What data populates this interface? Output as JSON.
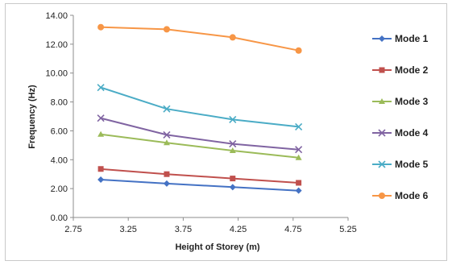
{
  "chart_data": {
    "type": "line",
    "title": "",
    "xlabel": "Height of Storey (m)",
    "ylabel": "Frequency (Hz)",
    "xlim": [
      2.75,
      5.25
    ],
    "ylim": [
      0,
      14
    ],
    "x_ticks": [
      "2.75",
      "3.25",
      "3.75",
      "4.25",
      "4.75",
      "5.25"
    ],
    "y_ticks": [
      "0.00",
      "2.00",
      "4.00",
      "6.00",
      "8.00",
      "10.00",
      "12.00",
      "14.00"
    ],
    "grid": false,
    "legend_position": "right",
    "series": [
      {
        "name": "Mode 1",
        "color": "#4472c4",
        "marker": "diamond",
        "x": [
          3.0,
          3.6,
          4.2,
          4.8
        ],
        "values": [
          2.62,
          2.35,
          2.1,
          1.86
        ]
      },
      {
        "name": "Mode 2",
        "color": "#c0504d",
        "marker": "square",
        "x": [
          3.0,
          3.6,
          4.2,
          4.8
        ],
        "values": [
          3.36,
          3.0,
          2.7,
          2.4
        ]
      },
      {
        "name": "Mode 3",
        "color": "#9bbb59",
        "marker": "triangle",
        "x": [
          3.0,
          3.6,
          4.2,
          4.8
        ],
        "values": [
          5.76,
          5.17,
          4.63,
          4.14
        ]
      },
      {
        "name": "Mode 4",
        "color": "#8064a2",
        "marker": "x",
        "x": [
          3.0,
          3.6,
          4.2,
          4.8
        ],
        "values": [
          6.88,
          5.72,
          5.1,
          4.7
        ]
      },
      {
        "name": "Mode 5",
        "color": "#4bacc6",
        "marker": "x",
        "x": [
          3.0,
          3.6,
          4.2,
          4.8
        ],
        "values": [
          9.0,
          7.52,
          6.78,
          6.28
        ]
      },
      {
        "name": "Mode 6",
        "color": "#f79646",
        "marker": "circle",
        "x": [
          3.0,
          3.6,
          4.2,
          4.8
        ],
        "values": [
          13.18,
          13.03,
          12.47,
          11.56
        ]
      }
    ]
  }
}
